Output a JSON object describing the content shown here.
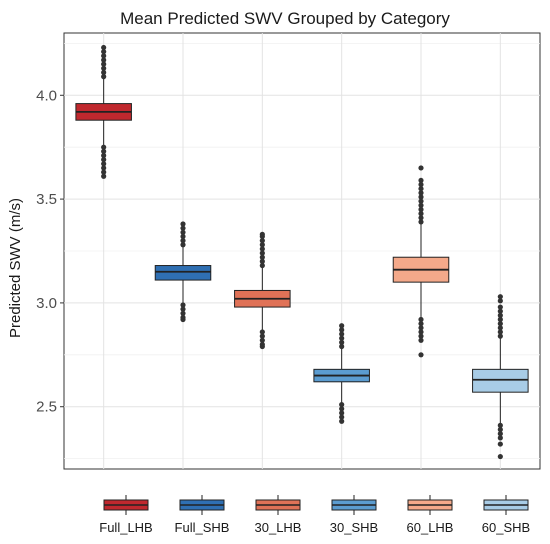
{
  "chart_data": {
    "type": "box",
    "title": "Mean Predicted SWV Grouped by Category",
    "xlabel": "",
    "ylabel": "Predicted SWV (m/s)",
    "ylim": [
      2.2,
      4.3
    ],
    "yticks": [
      2.5,
      3.0,
      3.5,
      4.0
    ],
    "ytick_labels": [
      "2.5",
      "3.0",
      "3.5",
      "4.0"
    ],
    "grid": true,
    "legend_position": "bottom",
    "categories": [
      "Full_LHB",
      "Full_SHB",
      "30_LHB",
      "30_SHB",
      "60_LHB",
      "60_SHB"
    ],
    "series": [
      {
        "name": "Full_LHB",
        "color": "#c0282e",
        "q1": 3.88,
        "median": 3.92,
        "q3": 3.96,
        "whisker_low": 3.76,
        "whisker_high": 4.08,
        "outliers_low": [
          3.75,
          3.73,
          3.71,
          3.69,
          3.67,
          3.65,
          3.63,
          3.61
        ],
        "outliers_high": [
          4.09,
          4.11,
          4.13,
          4.15,
          4.17,
          4.19,
          4.21,
          4.23
        ]
      },
      {
        "name": "Full_SHB",
        "color": "#2f6fb2",
        "q1": 3.11,
        "median": 3.15,
        "q3": 3.18,
        "whisker_low": 3.0,
        "whisker_high": 3.27,
        "outliers_low": [
          2.99,
          2.97,
          2.95,
          2.93,
          2.92
        ],
        "outliers_high": [
          3.28,
          3.3,
          3.32,
          3.34,
          3.36,
          3.38
        ]
      },
      {
        "name": "30_LHB",
        "color": "#e07257",
        "q1": 2.98,
        "median": 3.02,
        "q3": 3.06,
        "whisker_low": 2.87,
        "whisker_high": 3.17,
        "outliers_low": [
          2.86,
          2.84,
          2.82,
          2.8,
          2.79
        ],
        "outliers_high": [
          3.18,
          3.2,
          3.22,
          3.24,
          3.26,
          3.28,
          3.3,
          3.32,
          3.33
        ]
      },
      {
        "name": "30_SHB",
        "color": "#5b9cd0",
        "q1": 2.62,
        "median": 2.65,
        "q3": 2.68,
        "whisker_low": 2.52,
        "whisker_high": 2.78,
        "outliers_low": [
          2.51,
          2.49,
          2.47,
          2.45,
          2.43
        ],
        "outliers_high": [
          2.79,
          2.81,
          2.83,
          2.85,
          2.87,
          2.89
        ]
      },
      {
        "name": "60_LHB",
        "color": "#f4a98a",
        "q1": 3.1,
        "median": 3.16,
        "q3": 3.22,
        "whisker_low": 2.93,
        "whisker_high": 3.38,
        "outliers_low": [
          2.92,
          2.9,
          2.88,
          2.86,
          2.84,
          2.82,
          2.75
        ],
        "outliers_high": [
          3.39,
          3.41,
          3.43,
          3.45,
          3.47,
          3.49,
          3.51,
          3.53,
          3.55,
          3.57,
          3.59,
          3.65
        ]
      },
      {
        "name": "60_SHB",
        "color": "#a8cce6",
        "q1": 2.57,
        "median": 2.63,
        "q3": 2.68,
        "whisker_low": 2.42,
        "whisker_high": 2.83,
        "outliers_low": [
          2.41,
          2.39,
          2.37,
          2.35,
          2.32,
          2.26
        ],
        "outliers_high": [
          2.84,
          2.86,
          2.88,
          2.9,
          2.92,
          2.94,
          2.96,
          2.98,
          3.01,
          3.03
        ]
      }
    ]
  }
}
